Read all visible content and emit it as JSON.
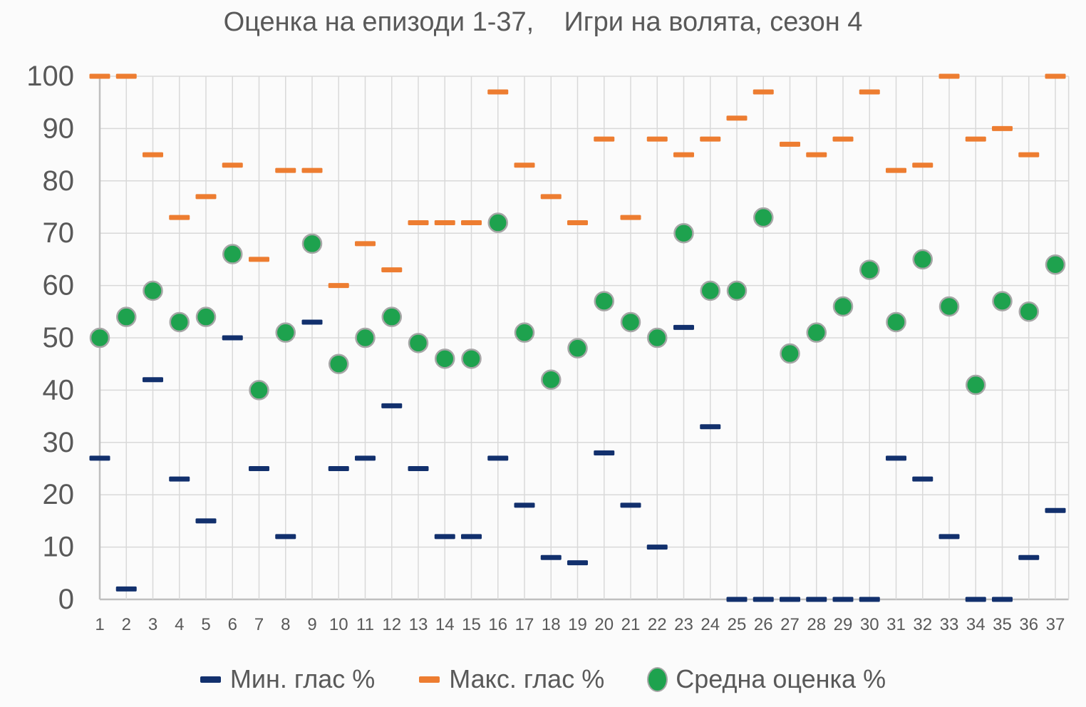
{
  "title": "Оценка на епизоди 1-37,    Игри на волята, сезон 4",
  "colors": {
    "min_series": "#12306d",
    "max_series": "#ed7d31",
    "avg_series": "#1ea24e",
    "avg_marker_border": "#a6a6a6",
    "gridline": "#d9d9d9",
    "axis_line": "#bfbfbf",
    "text": "#595959",
    "background": "#fbfbfb"
  },
  "chart_data": {
    "type": "scatter",
    "title": "Оценка на епизоди 1-37,    Игри на волята, сезон 4",
    "x": [
      1,
      2,
      3,
      4,
      5,
      6,
      7,
      8,
      9,
      10,
      11,
      12,
      13,
      14,
      15,
      16,
      17,
      18,
      19,
      20,
      21,
      22,
      23,
      24,
      25,
      26,
      27,
      28,
      29,
      30,
      31,
      32,
      33,
      34,
      35,
      36,
      37
    ],
    "series": [
      {
        "name": "Мин. глас %",
        "marker": "dash",
        "color": "#12306d",
        "values": [
          27,
          2,
          42,
          23,
          15,
          50,
          25,
          12,
          53,
          25,
          27,
          37,
          25,
          12,
          12,
          27,
          18,
          8,
          7,
          28,
          18,
          10,
          52,
          33,
          0,
          0,
          0,
          0,
          0,
          0,
          27,
          23,
          12,
          0,
          0,
          8,
          17
        ]
      },
      {
        "name": "Макс. глас %",
        "marker": "dash",
        "color": "#ed7d31",
        "values": [
          100,
          100,
          85,
          73,
          77,
          83,
          65,
          82,
          82,
          60,
          68,
          63,
          72,
          72,
          72,
          97,
          83,
          77,
          72,
          88,
          73,
          88,
          85,
          88,
          92,
          97,
          87,
          85,
          88,
          97,
          82,
          83,
          100,
          88,
          90,
          85,
          100
        ]
      },
      {
        "name": "Средна оценка %",
        "marker": "circle",
        "color": "#1ea24e",
        "values": [
          50,
          54,
          59,
          53,
          54,
          66,
          40,
          51,
          68,
          45,
          50,
          54,
          49,
          46,
          46,
          72,
          51,
          42,
          48,
          57,
          53,
          50,
          70,
          59,
          59,
          73,
          47,
          51,
          56,
          63,
          53,
          65,
          56,
          41,
          57,
          55,
          64
        ]
      }
    ],
    "xlabel": "",
    "ylabel": "",
    "ylim": [
      0,
      100
    ],
    "y_step": 10,
    "grid": true,
    "legend_position": "bottom"
  }
}
